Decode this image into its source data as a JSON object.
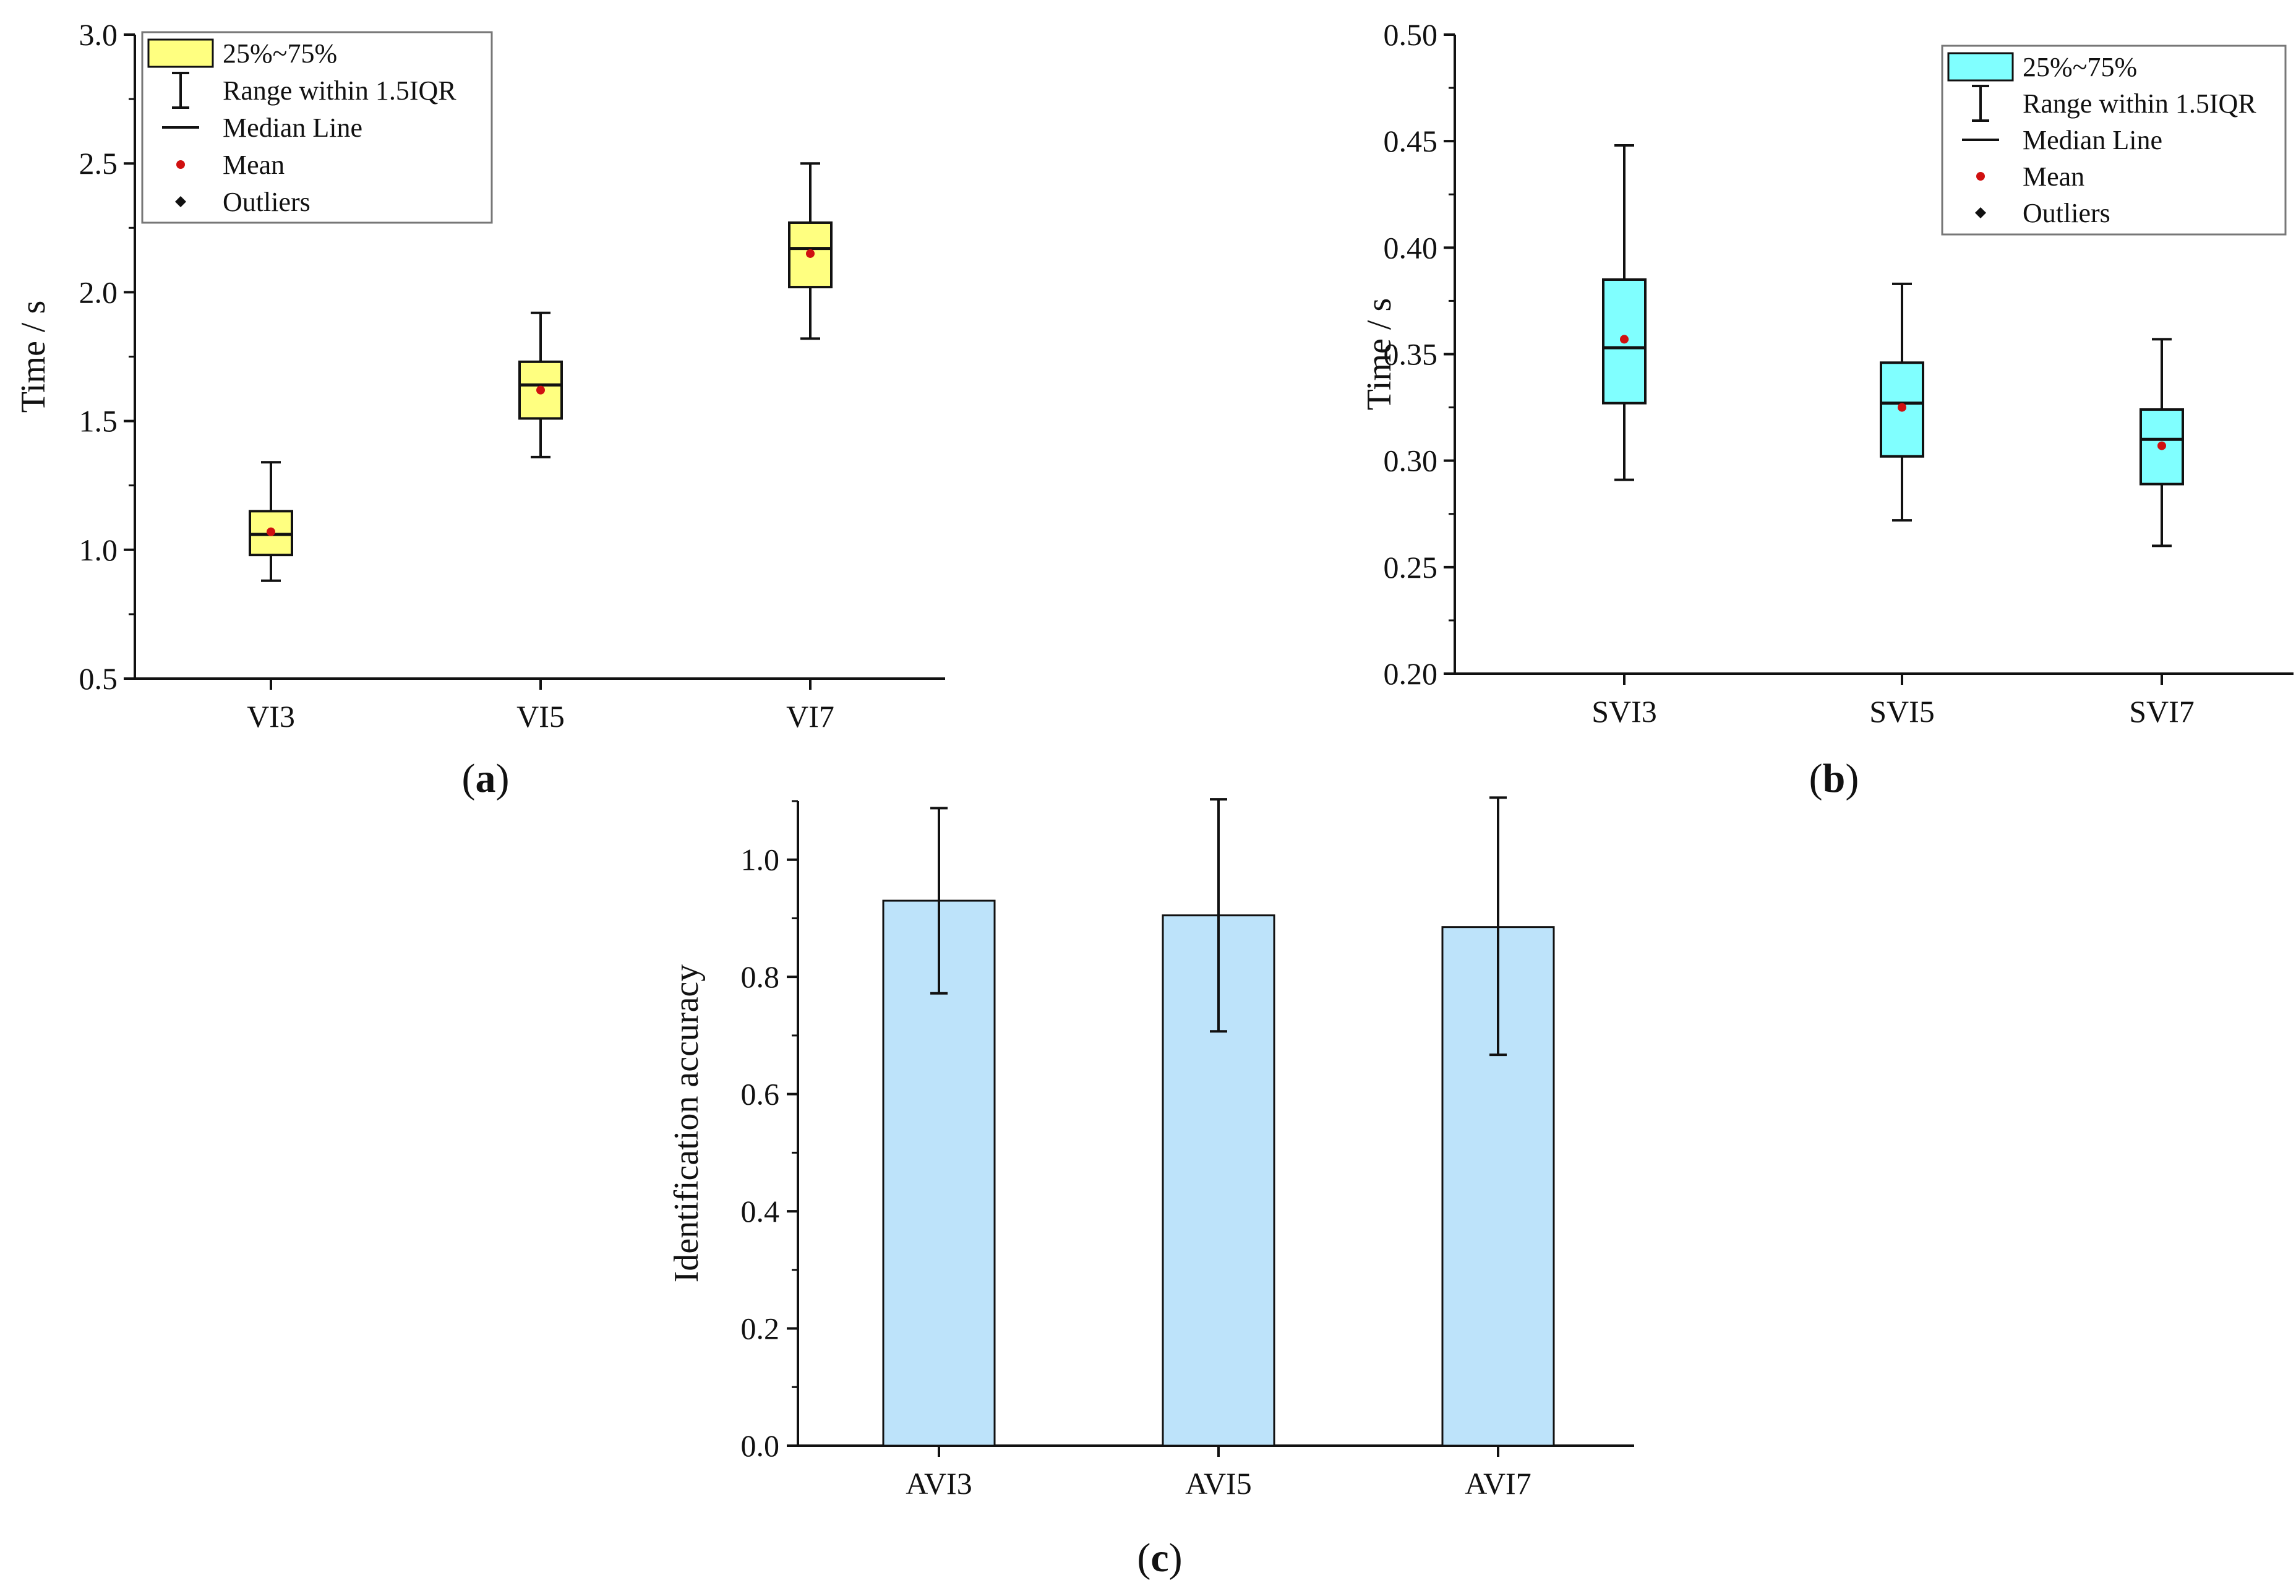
{
  "panel_labels": {
    "a": "a",
    "b": "b",
    "c": "c"
  },
  "colors": {
    "box_a": "#ffff80",
    "box_b": "#80ffff",
    "bar_c": "#bde3fa",
    "mean": "#d01010",
    "ink": "#111111"
  },
  "chart_data": [
    {
      "type": "box",
      "ylabel": "Time / s",
      "ylim": [
        0.5,
        3.0
      ],
      "yticks": [
        "0.5",
        "1.0",
        "1.5",
        "2.0",
        "2.5",
        "3.0"
      ],
      "categories": [
        "VI3",
        "VI5",
        "VI7"
      ],
      "boxes": [
        {
          "min": 0.88,
          "q1": 0.98,
          "median": 1.06,
          "q3": 1.15,
          "max": 1.34,
          "mean": 1.07
        },
        {
          "min": 1.36,
          "q1": 1.51,
          "median": 1.64,
          "q3": 1.73,
          "max": 1.92,
          "mean": 1.62
        },
        {
          "min": 1.82,
          "q1": 2.02,
          "median": 2.17,
          "q3": 2.27,
          "max": 2.5,
          "mean": 2.15
        }
      ],
      "legend": {
        "position": "top-left",
        "items": [
          "25%~75%",
          "Range within 1.5IQR",
          "Median Line",
          "Mean",
          "Outliers"
        ]
      }
    },
    {
      "type": "box",
      "ylabel": "Time / s",
      "ylim": [
        0.2,
        0.5
      ],
      "yticks": [
        "0.20",
        "0.25",
        "0.30",
        "0.35",
        "0.40",
        "0.45",
        "0.50"
      ],
      "categories": [
        "SVI3",
        "SVI5",
        "SVI7"
      ],
      "boxes": [
        {
          "min": 0.291,
          "q1": 0.327,
          "median": 0.353,
          "q3": 0.385,
          "max": 0.448,
          "mean": 0.357
        },
        {
          "min": 0.272,
          "q1": 0.302,
          "median": 0.327,
          "q3": 0.346,
          "max": 0.383,
          "mean": 0.325
        },
        {
          "min": 0.26,
          "q1": 0.289,
          "median": 0.31,
          "q3": 0.324,
          "max": 0.357,
          "mean": 0.307
        }
      ],
      "legend": {
        "position": "top-right",
        "items": [
          "25%~75%",
          "Range within 1.5IQR",
          "Median Line",
          "Mean",
          "Outliers"
        ]
      }
    },
    {
      "type": "bar",
      "ylabel": "Identification accuracy",
      "ylim": [
        0.0,
        1.1
      ],
      "yticks": [
        "0.0",
        "0.2",
        "0.4",
        "0.6",
        "0.8",
        "1.0"
      ],
      "categories": [
        "AVI3",
        "AVI5",
        "AVI7"
      ],
      "values": [
        0.93,
        0.905,
        0.885
      ],
      "error_low": [
        0.772,
        0.707,
        0.667
      ],
      "error_high": [
        1.088,
        1.103,
        1.106
      ]
    }
  ]
}
